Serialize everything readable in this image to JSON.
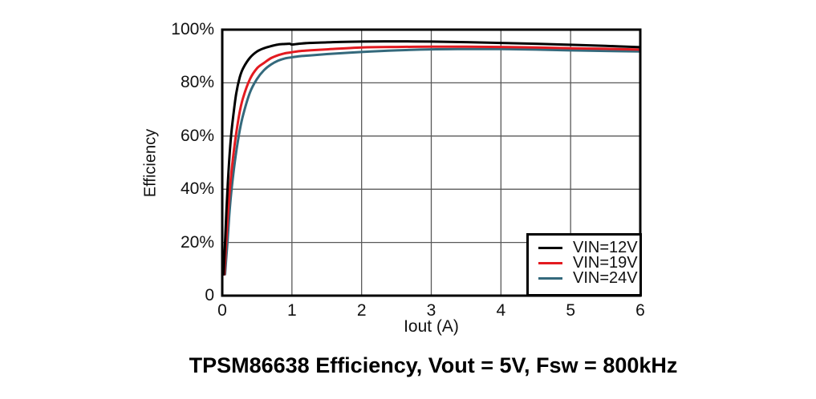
{
  "chart_data": {
    "type": "line",
    "title": "TPSM86638 Efficiency, Vout = 5V, Fsw = 800kHz",
    "xlabel": "Iout (A)",
    "ylabel": "Efficiency",
    "xlim": [
      0,
      6
    ],
    "ylim": [
      0,
      100
    ],
    "x_ticks": [
      0,
      1,
      2,
      3,
      4,
      5,
      6
    ],
    "x_tick_labels": [
      "0",
      "1",
      "2",
      "3",
      "4",
      "5",
      "6"
    ],
    "y_ticks": [
      0,
      20,
      40,
      60,
      80,
      100
    ],
    "y_tick_labels": [
      "0",
      "20%",
      "40%",
      "60%",
      "80%",
      "100%"
    ],
    "grid": true,
    "grid_color": "#595959",
    "axis_color": "#000000",
    "legend_position": "lower right",
    "series": [
      {
        "name": "VIN=12V",
        "color": "#000000",
        "points": [
          [
            0.02,
            8
          ],
          [
            0.04,
            20
          ],
          [
            0.06,
            32
          ],
          [
            0.08,
            42
          ],
          [
            0.1,
            51
          ],
          [
            0.13,
            61
          ],
          [
            0.16,
            68
          ],
          [
            0.2,
            76
          ],
          [
            0.25,
            82
          ],
          [
            0.3,
            85.5
          ],
          [
            0.4,
            89.5
          ],
          [
            0.5,
            91.8
          ],
          [
            0.6,
            93.0
          ],
          [
            0.7,
            93.8
          ],
          [
            0.8,
            94.4
          ],
          [
            0.9,
            94.6
          ],
          [
            0.97,
            94.7
          ],
          [
            1.0,
            94.4
          ],
          [
            1.1,
            94.7
          ],
          [
            1.25,
            95.0
          ],
          [
            1.5,
            95.2
          ],
          [
            1.75,
            95.4
          ],
          [
            2.0,
            95.5
          ],
          [
            2.5,
            95.6
          ],
          [
            3.0,
            95.5
          ],
          [
            3.5,
            95.3
          ],
          [
            4.0,
            95.0
          ],
          [
            4.5,
            94.7
          ],
          [
            5.0,
            94.3
          ],
          [
            5.5,
            93.9
          ],
          [
            6.0,
            93.4
          ]
        ]
      },
      {
        "name": "VIN=19V",
        "color": "#e31a20",
        "points": [
          [
            0.03,
            8
          ],
          [
            0.05,
            17
          ],
          [
            0.08,
            30
          ],
          [
            0.1,
            37
          ],
          [
            0.13,
            46
          ],
          [
            0.16,
            53
          ],
          [
            0.2,
            61
          ],
          [
            0.25,
            69
          ],
          [
            0.3,
            74.5
          ],
          [
            0.4,
            81.5
          ],
          [
            0.5,
            85.5
          ],
          [
            0.6,
            87.5
          ],
          [
            0.7,
            89.3
          ],
          [
            0.8,
            90.4
          ],
          [
            0.9,
            91.1
          ],
          [
            1.0,
            91.5
          ],
          [
            1.1,
            91.9
          ],
          [
            1.25,
            92.2
          ],
          [
            1.5,
            92.6
          ],
          [
            2.0,
            93.3
          ],
          [
            2.5,
            93.5
          ],
          [
            3.0,
            93.6
          ],
          [
            3.5,
            93.6
          ],
          [
            4.0,
            93.5
          ],
          [
            4.5,
            93.3
          ],
          [
            5.0,
            93.0
          ],
          [
            5.5,
            92.8
          ],
          [
            6.0,
            92.5
          ]
        ]
      },
      {
        "name": "VIN=24V",
        "color": "#34697c",
        "points": [
          [
            0.04,
            8
          ],
          [
            0.06,
            15
          ],
          [
            0.08,
            22
          ],
          [
            0.1,
            30
          ],
          [
            0.13,
            39
          ],
          [
            0.16,
            46
          ],
          [
            0.2,
            54
          ],
          [
            0.25,
            62
          ],
          [
            0.3,
            68
          ],
          [
            0.4,
            76.5
          ],
          [
            0.5,
            81.5
          ],
          [
            0.6,
            84.8
          ],
          [
            0.7,
            86.9
          ],
          [
            0.8,
            88.3
          ],
          [
            0.9,
            89.2
          ],
          [
            1.0,
            89.6
          ],
          [
            1.1,
            90.0
          ],
          [
            1.25,
            90.3
          ],
          [
            1.5,
            90.8
          ],
          [
            2.0,
            91.6
          ],
          [
            2.5,
            92.2
          ],
          [
            3.0,
            92.6
          ],
          [
            3.5,
            92.7
          ],
          [
            4.0,
            92.7
          ],
          [
            4.5,
            92.5
          ],
          [
            5.0,
            92.2
          ],
          [
            5.5,
            92.0
          ],
          [
            6.0,
            91.8
          ]
        ]
      }
    ]
  }
}
